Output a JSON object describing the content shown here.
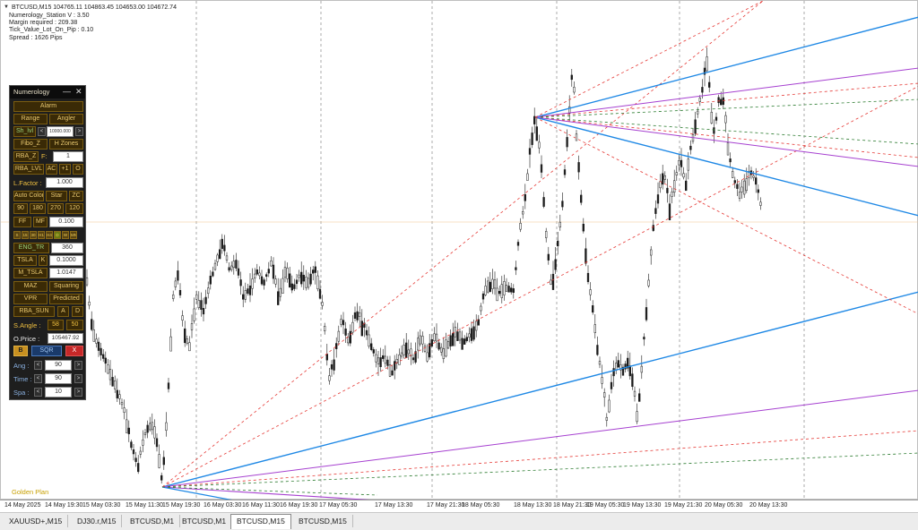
{
  "chart": {
    "header": "BTCUSD,M15  104765.11 104863.45 104653.00 104672.74",
    "info_lines": [
      "Numerology_Station V : 3.50",
      "Margin required : 209.38",
      "Tick_Value_Lot_On_Pip : 0.10",
      "Spread : 1626  Pips"
    ],
    "footer_label": "Golden Plan",
    "x_labels": [
      "14 May 2025",
      "14 May 19:30",
      "15 May 03:30",
      "15 May 11:30",
      "15 May 19:30",
      "16 May 03:30",
      "16 May 11:30",
      "16 May 19:30",
      "17 May 05:30",
      "17 May 13:30",
      "17 May 21:30",
      "18 May 05:30",
      "18 May 13:30",
      "18 May 21:30",
      "19 May 05:30",
      "19 May 13:30",
      "19 May 21:30",
      "20 May 05:30",
      "20 May 13:30"
    ],
    "colors": {
      "blue_line": "#1e88e5",
      "purple_line": "#a640d0",
      "red_dotted": "#e53935",
      "green_dotted": "#2e7d32",
      "candle": "#1a1a1a"
    }
  },
  "panel": {
    "title": "Numerology",
    "minimize": "—",
    "close": "✕",
    "alarm": "Alarm",
    "range": "Range",
    "angler": "Angler",
    "sh_lvl": "Sh_lvl",
    "sh_value": "10000.000",
    "fibo_z": "Fibo_Z",
    "h_zones": "H Zones",
    "rba_z": "RBA_Z",
    "f_label": "F:",
    "f_value": "1",
    "rba_lvl": "RBA_LVL",
    "ac": "AC",
    "plus1": "+1",
    "o_btn": "O",
    "l_factor": "L.Factor :",
    "l_factor_value": "1.000",
    "auto_color": "Auto Color",
    "star": "Star",
    "zc": "ZC",
    "a90": "90",
    "a180": "180",
    "a270": "270",
    "a120": "120",
    "ff": "FF",
    "mf": "MF",
    "ff_value": "0.100",
    "timeframes": [
      "S",
      "15",
      "30",
      "H1",
      "H4",
      "D",
      "W",
      "MN"
    ],
    "eng_tr": "ENG_TR",
    "eng_tr_value": "360",
    "tsla": "TSLA",
    "k": "K",
    "tsla_value": "0.1000",
    "m_tsla": "M_TSLA",
    "m_tsla_value": "1.0147",
    "maz": "MAZ",
    "squaring": "Squaring",
    "vpr": "VPR",
    "predicted": "Predicted",
    "rba_sun": "RBA_SUN",
    "a_btn": "A",
    "d_btn": "D",
    "s_angle": "S.Angle :",
    "s_angle_v1": "58",
    "s_angle_v2": "50",
    "o_price": "O.Price :",
    "o_price_value": "105467.92",
    "b_btn": "B",
    "sqr": "SQR",
    "x_btn": "X",
    "ang": "Ang :",
    "ang_value": "90",
    "time": "Time :",
    "time_value": "90",
    "spa": "Spa :",
    "spa_value": "10",
    "left_arrow": "<",
    "right_arrow": ">"
  },
  "tabs": [
    "XAUUSD+,M15",
    "DJ30.r,M15",
    "BTCUSD,M1",
    "BTCUSD,M1",
    "BTCUSD,M15",
    "BTCUSD,M15"
  ],
  "active_tab": 4
}
